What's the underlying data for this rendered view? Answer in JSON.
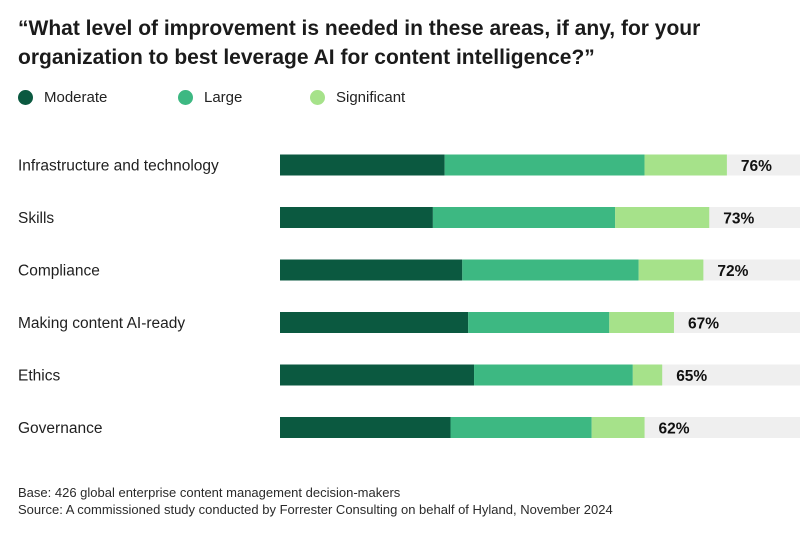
{
  "chart_data": {
    "type": "bar",
    "orientation": "horizontal",
    "stacked": true,
    "title": "“What level of improvement is needed in these areas, if any, for your organization to best leverage AI for content intelligence?”",
    "categories": [
      "Infrastructure and technology",
      "Skills",
      "Compliance",
      "Making content AI-ready",
      "Ethics",
      "Governance"
    ],
    "series": [
      {
        "name": "Moderate",
        "color": "#0b5940",
        "values": [
          28,
          26,
          31,
          32,
          33,
          29
        ]
      },
      {
        "name": "Large",
        "color": "#3db882",
        "values": [
          34,
          31,
          30,
          24,
          27,
          24
        ]
      },
      {
        "name": "Significant",
        "color": "#a6e28a",
        "values": [
          14,
          16,
          11,
          11,
          5,
          9
        ]
      }
    ],
    "totals": [
      "76%",
      "73%",
      "72%",
      "67%",
      "65%",
      "62%"
    ],
    "xlim": [
      0,
      100
    ],
    "track_color": "#efefef",
    "legend_position": "top-left",
    "grid": false
  },
  "footer": {
    "base": "Base: 426 global enterprise content management decision-makers",
    "source": "Source: A commissioned study conducted by Forrester Consulting on behalf of Hyland, November 2024"
  }
}
